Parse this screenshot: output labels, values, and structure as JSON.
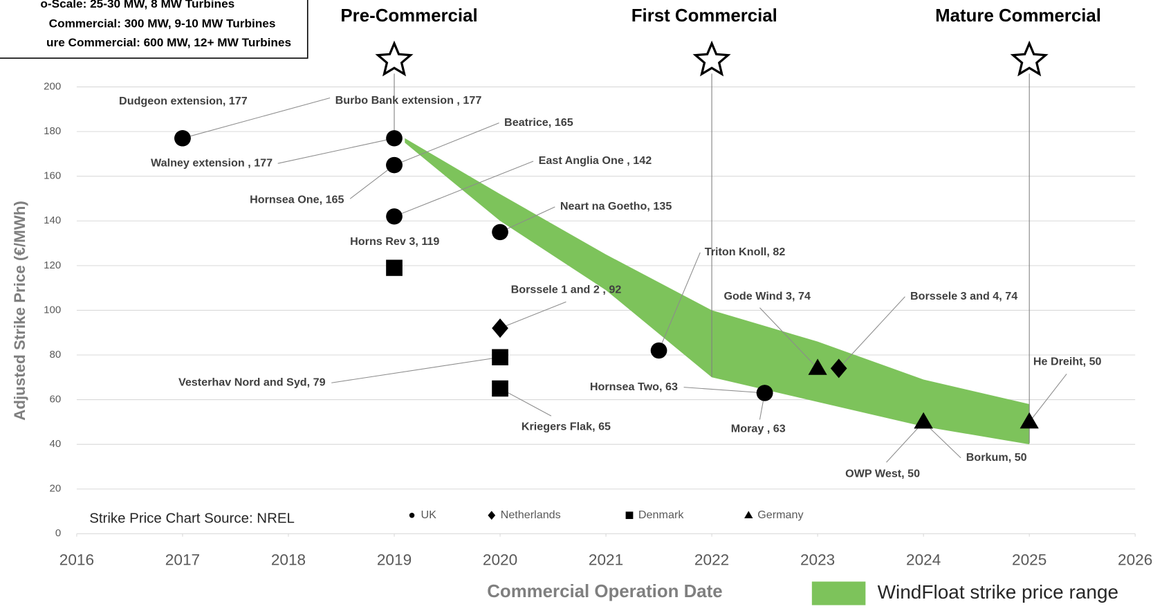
{
  "chart_data": {
    "type": "scatter",
    "stage_box": [
      "o-Scale: 25-30 MW, 8 MW Turbines",
      "Commercial: 300 MW, 9-10 MW Turbines",
      "ure Commercial: 600 MW, 12+ MW Turbines"
    ],
    "stages": [
      {
        "name": "Pre-Commercial",
        "x": 2019
      },
      {
        "name": "First Commercial",
        "x": 2022
      },
      {
        "name": "Mature Commercial",
        "x": 2025
      }
    ],
    "x_label": "Commercial Operation Date",
    "y_label": "Adjusted Strike Price (€/MWh)",
    "source": "Strike Price Chart Source: NREL",
    "xlim": [
      2016,
      2026
    ],
    "xticks": [
      2016,
      2017,
      2018,
      2019,
      2020,
      2021,
      2022,
      2023,
      2024,
      2025,
      2026
    ],
    "ylim": [
      0,
      200
    ],
    "yticks": [
      0,
      20,
      40,
      60,
      80,
      100,
      120,
      140,
      160,
      180,
      200
    ],
    "grid": true,
    "series": [
      {
        "name": "UK",
        "marker": "circle",
        "color": "#000000",
        "x": [
          2017,
          2017,
          2019,
          2019,
          2019,
          2019,
          2020,
          2021.5,
          2022.5,
          2022.5
        ],
        "values": [
          177,
          177,
          177,
          165,
          165,
          142,
          135,
          82,
          63,
          63
        ],
        "labels": [
          "Dudgeon extension, 177",
          "Burbo Bank extension , 177",
          "Walney extension , 177",
          "Beatrice, 165",
          "Hornsea One, 165",
          "East Anglia One , 142",
          "Neart na Goetho, 135",
          "Triton Knoll, 82",
          "Hornsea Two, 63",
          "Moray , 63"
        ]
      },
      {
        "name": "Netherlands",
        "marker": "diamond",
        "color": "#000000",
        "x": [
          2020,
          2023.2
        ],
        "values": [
          92,
          74
        ],
        "labels": [
          "Borssele 1 and 2 , 92",
          "Borssele 3 and 4, 74"
        ]
      },
      {
        "name": "Denmark",
        "marker": "square",
        "color": "#000000",
        "x": [
          2019,
          2020,
          2020
        ],
        "values": [
          119,
          79,
          65
        ],
        "labels": [
          "Horns Rev 3, 119",
          "Vesterhav Nord and Syd, 79",
          "Kriegers Flak, 65"
        ]
      },
      {
        "name": "Germany",
        "marker": "triangle",
        "color": "#000000",
        "x": [
          2023,
          2024,
          2024,
          2025
        ],
        "values": [
          74,
          50,
          50,
          50
        ],
        "labels": [
          "Gode Wind 3, 74",
          "OWP West, 50",
          "Borkum, 50",
          "He Dreiht, 50"
        ]
      }
    ],
    "band": {
      "name": "WindFloat strike price range",
      "color": "#7dc35b",
      "x": [
        2019.1,
        2020,
        2021,
        2022,
        2023,
        2024,
        2025
      ],
      "upper": [
        177,
        152,
        125,
        100,
        86,
        69,
        58
      ],
      "lower": [
        175,
        140,
        109,
        70,
        59,
        48,
        40
      ]
    }
  }
}
